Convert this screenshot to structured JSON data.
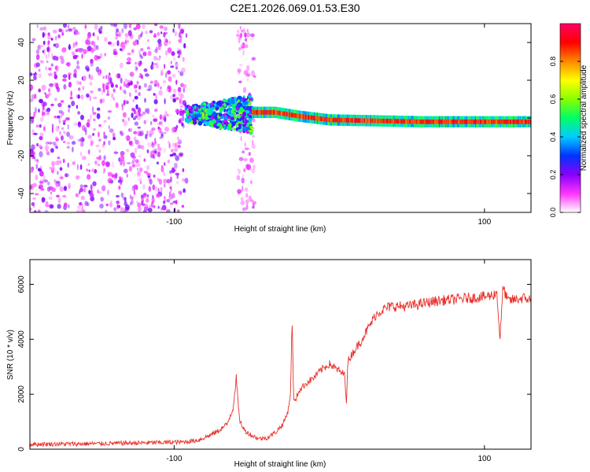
{
  "title": "C2E1.2026.069.01.53.E30",
  "colors": {
    "trace": "#e8312b",
    "axis": "#000000"
  },
  "chart_data": [
    {
      "type": "heatmap",
      "name": "spectrogram",
      "xlabel": "Height of straight line (km)",
      "ylabel": "Frequency (Hz)",
      "xlim": [
        -193,
        130
      ],
      "ylim": [
        -50,
        50
      ],
      "x_ticks": [
        -100,
        100
      ],
      "x_tick_labels": [
        "-100",
        "100"
      ],
      "y_ticks": [
        -40,
        -20,
        0,
        20,
        40
      ],
      "y_tick_labels": [
        "-40",
        "-20",
        "0",
        "20",
        "40"
      ],
      "grid": false,
      "features": [
        {
          "label": "noise region",
          "x_range": [
            -193,
            -92
          ],
          "freq_range": [
            -50,
            50
          ],
          "amplitude": 0.15
        },
        {
          "label": "weak band",
          "x_range": [
            -59,
            -48
          ],
          "freq_range": [
            -50,
            50
          ],
          "amplitude": 0.1
        },
        {
          "label": "signal onset",
          "x_range": [
            -92,
            -50
          ],
          "freq_center": 2,
          "freq_halfwidth": 10,
          "amplitude": 0.35
        },
        {
          "label": "carrier line",
          "x_range": [
            -50,
            130
          ],
          "freq_center_points": [
            [
              -50,
              3
            ],
            [
              -35,
              3
            ],
            [
              -20,
              1
            ],
            [
              0,
              -1
            ],
            [
              60,
              -2
            ],
            [
              130,
              -2
            ]
          ],
          "freq_halfwidth": 3,
          "amplitude": 0.95
        }
      ],
      "colorbar": {
        "label": "Normalized spectral amplitude",
        "range": [
          0,
          1
        ],
        "ticks": [
          0.0,
          0.2,
          0.4,
          0.6,
          0.8
        ],
        "tick_labels": [
          "0.0",
          "0.2",
          "0.4",
          "0.6",
          "0.8"
        ],
        "stops": [
          "#ffffff",
          "#ff33ff",
          "#8800ff",
          "#0033ff",
          "#00ccff",
          "#00ff66",
          "#88ff00",
          "#ffff00",
          "#ff8800",
          "#ff0000",
          "#ff0066"
        ]
      }
    },
    {
      "type": "line",
      "name": "snr",
      "xlabel": "Height of straight line (km)",
      "ylabel": "SNR (10 * v/v)",
      "xlim": [
        -193,
        130
      ],
      "ylim": [
        0,
        6900
      ],
      "x_ticks": [
        -100,
        100
      ],
      "x_tick_labels": [
        "-100",
        "100"
      ],
      "y_ticks": [
        0,
        2000,
        4000,
        6000
      ],
      "y_tick_labels": [
        "0",
        "2000",
        "4000",
        "6000"
      ],
      "grid": false,
      "series": [
        {
          "name": "SNR",
          "x": [
            -193,
            -150,
            -120,
            -95,
            -85,
            -78,
            -72,
            -66,
            -62,
            -60,
            -58,
            -55,
            -50,
            -45,
            -40,
            -35,
            -30,
            -27,
            -25,
            -24,
            -23,
            -22,
            -20,
            -15,
            -10,
            -5,
            0,
            5,
            10,
            11,
            12,
            15,
            20,
            25,
            30,
            35,
            40,
            50,
            60,
            70,
            80,
            90,
            100,
            105,
            108,
            110,
            112,
            115,
            120,
            125,
            130
          ],
          "y": [
            180,
            200,
            230,
            260,
            320,
            480,
            650,
            900,
            1500,
            2600,
            1100,
            700,
            500,
            380,
            420,
            600,
            900,
            1300,
            2000,
            4800,
            1800,
            1700,
            2100,
            2400,
            2600,
            2900,
            3100,
            2900,
            2700,
            1700,
            3200,
            3500,
            3900,
            4400,
            4900,
            5100,
            5200,
            5200,
            5300,
            5400,
            5450,
            5500,
            5550,
            5600,
            5700,
            4000,
            5900,
            5400,
            5450,
            5500,
            5450
          ],
          "noise_amplitude": 130
        }
      ]
    }
  ]
}
